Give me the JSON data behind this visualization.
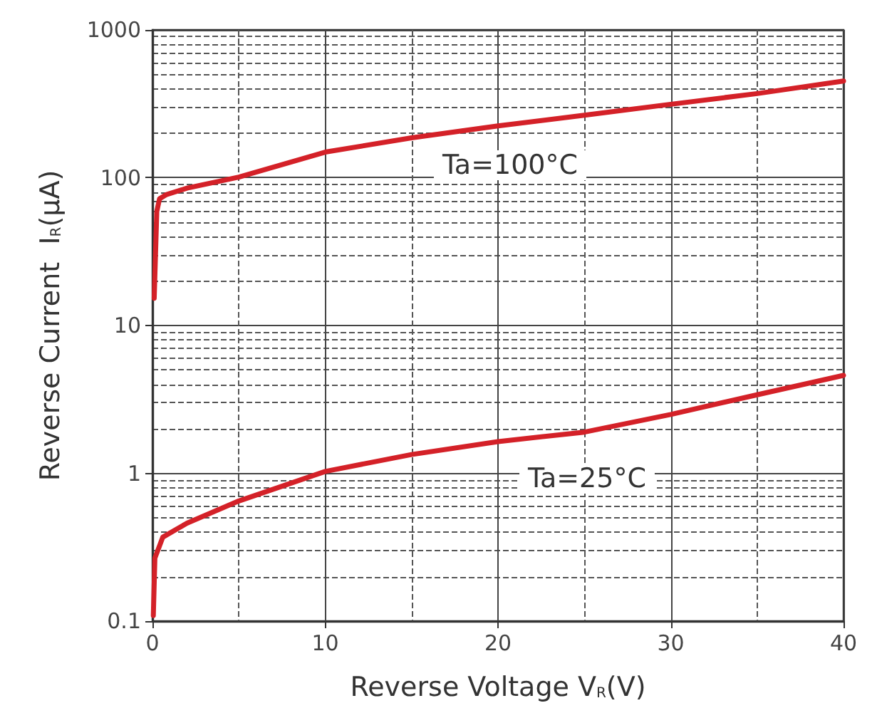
{
  "chart_data": {
    "type": "line",
    "xlabel": "Reverse Voltage V$_{R}$(V)",
    "ylabel": "Reverse Current  I$_{R}$(μA)",
    "series": [
      {
        "color": "#d42128",
        "x": [
          0.1,
          0.25,
          0.41,
          0.82,
          2,
          5,
          10,
          15,
          20,
          25,
          30,
          35,
          40
        ],
        "values": [
          15.3,
          59,
          72,
          77,
          85,
          101,
          149,
          186,
          224,
          265,
          314,
          371,
          451
        ]
      },
      {
        "color": "#d42128",
        "x": [
          0.05,
          0.14,
          0.6,
          2,
          5,
          10,
          15,
          20,
          25,
          30,
          35,
          40
        ],
        "values": [
          0.109,
          0.267,
          0.37,
          0.46,
          0.65,
          1.03,
          1.34,
          1.64,
          1.9,
          2.5,
          3.4,
          4.6
        ]
      }
    ],
    "annotations": [
      "Ta=100°C",
      "Ta=25°C"
    ],
    "xlim": [
      0,
      40
    ],
    "xticks": [
      0,
      10,
      20,
      30,
      40
    ],
    "ylim": [
      0.1,
      1000
    ],
    "yticks": [
      0.1,
      1,
      10,
      100,
      1000
    ],
    "log": "y",
    "grid": true,
    "marker": "none",
    "line_style": "solid"
  }
}
